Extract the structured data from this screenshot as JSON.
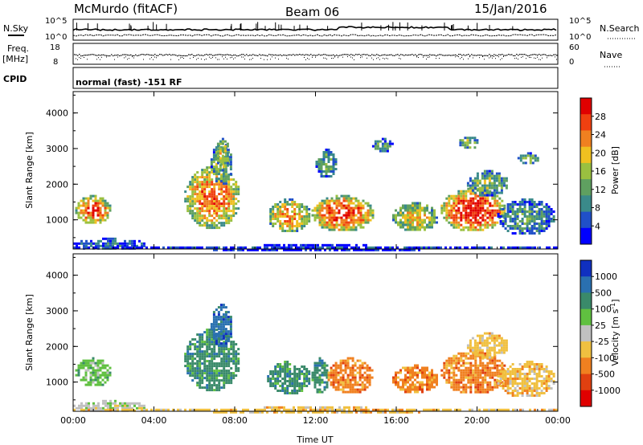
{
  "header": {
    "title_left": "McMurdo (fitACF)",
    "title_center": "Beam 06",
    "title_right": "15/Jan/2016"
  },
  "noise_panel": {
    "left_label": "N.Sky",
    "right_label": "N.Search",
    "left_ticks": [
      "10^5",
      "10^0"
    ],
    "right_ticks": [
      "10^5",
      "10^0"
    ]
  },
  "freq_panel": {
    "left_label_1": "Freq.",
    "left_label_2": "[MHz]",
    "right_label": "Nave",
    "left_ticks": [
      "18",
      "8"
    ],
    "right_ticks": [
      "60",
      "0"
    ]
  },
  "cpid": {
    "label": "CPID",
    "text": "normal (fast) -151 RF"
  },
  "chart_data": [
    {
      "type": "heatmap",
      "title": "",
      "ylabel": "Slant Range [km]",
      "xlabel": "",
      "x_ticks": [
        "00:00",
        "04:00",
        "08:00",
        "12:00",
        "16:00",
        "20:00",
        "00:00"
      ],
      "y_ticks": [
        "1000",
        "2000",
        "3000",
        "4000"
      ],
      "ylim": [
        180,
        4600
      ],
      "xlim_hours": [
        0,
        24
      ],
      "colorbar": {
        "label": "Power [dB]",
        "ticks": [
          "4",
          "8",
          "12",
          "16",
          "20",
          "24",
          "28"
        ],
        "range": [
          0,
          30
        ],
        "colors": [
          "#0000ff",
          "#2050c8",
          "#3a8a8a",
          "#5fa060",
          "#9ac040",
          "#f0c020",
          "#f08020",
          "#f04010",
          "#e00000"
        ]
      },
      "regions": [
        {
          "x": [
            0.1,
            1.8
          ],
          "y": [
            900,
            1700
          ],
          "level": 0.75
        },
        {
          "x": [
            0.0,
            3.5
          ],
          "y": [
            180,
            500
          ],
          "level": 0.2
        },
        {
          "x": [
            5.5,
            8.2
          ],
          "y": [
            800,
            2500
          ],
          "level": 0.7
        },
        {
          "x": [
            6.8,
            7.8
          ],
          "y": [
            2000,
            3200
          ],
          "level": 0.45
        },
        {
          "x": [
            9.6,
            11.7
          ],
          "y": [
            700,
            1600
          ],
          "level": 0.62
        },
        {
          "x": [
            11.8,
            14.8
          ],
          "y": [
            700,
            1700
          ],
          "level": 0.78
        },
        {
          "x": [
            15.8,
            18.0
          ],
          "y": [
            700,
            1500
          ],
          "level": 0.55
        },
        {
          "x": [
            18.2,
            21.4
          ],
          "y": [
            700,
            1900
          ],
          "level": 0.85
        },
        {
          "x": [
            21.0,
            23.8
          ],
          "y": [
            600,
            1600
          ],
          "level": 0.3
        },
        {
          "x": [
            19.5,
            21.5
          ],
          "y": [
            1700,
            2400
          ],
          "level": 0.4
        },
        {
          "x": [
            7.0,
            7.7
          ],
          "y": [
            2400,
            3300
          ],
          "level": 0.5
        },
        {
          "x": [
            12.0,
            13.0
          ],
          "y": [
            2200,
            3000
          ],
          "level": 0.35
        },
        {
          "x": [
            14.8,
            15.8
          ],
          "y": [
            2900,
            3300
          ],
          "level": 0.3
        },
        {
          "x": [
            19.0,
            20.0
          ],
          "y": [
            3000,
            3400
          ],
          "level": 0.4
        },
        {
          "x": [
            22.0,
            23.0
          ],
          "y": [
            2600,
            2900
          ],
          "level": 0.45
        },
        {
          "x": [
            0.0,
            24.0
          ],
          "y": [
            180,
            320
          ],
          "level": 0.1
        }
      ]
    },
    {
      "type": "heatmap",
      "title": "",
      "ylabel": "Slant Range [km]",
      "xlabel": "Time UT",
      "x_ticks": [
        "00:00",
        "04:00",
        "08:00",
        "12:00",
        "16:00",
        "20:00",
        "00:00"
      ],
      "y_ticks": [
        "1000",
        "2000",
        "3000",
        "4000"
      ],
      "ylim": [
        180,
        4600
      ],
      "xlim_hours": [
        0,
        24
      ],
      "colorbar": {
        "label": "Velocity [m s^-1]",
        "ticks": [
          "1000",
          "500",
          "100",
          "25",
          "-25",
          "-100",
          "-500",
          "-1000"
        ],
        "range": [
          -1200,
          1200
        ],
        "colors": [
          "#1030c0",
          "#2a70b0",
          "#3a8a6a",
          "#60c040",
          "#c0c0c0",
          "#f0c040",
          "#f08020",
          "#e04010",
          "#e00000"
        ]
      },
      "regions": [
        {
          "x": [
            0.1,
            1.8
          ],
          "y": [
            900,
            1700
          ],
          "level": 3
        },
        {
          "x": [
            0.0,
            3.5
          ],
          "y": [
            180,
            500
          ],
          "level": 4
        },
        {
          "x": [
            5.5,
            8.2
          ],
          "y": [
            800,
            2500
          ],
          "level": 2
        },
        {
          "x": [
            6.8,
            7.8
          ],
          "y": [
            2000,
            3200
          ],
          "level": 1
        },
        {
          "x": [
            9.6,
            11.7
          ],
          "y": [
            700,
            1600
          ],
          "level": 2
        },
        {
          "x": [
            11.8,
            12.6
          ],
          "y": [
            700,
            1700
          ],
          "level": 2
        },
        {
          "x": [
            12.6,
            14.8
          ],
          "y": [
            700,
            1700
          ],
          "level": 6
        },
        {
          "x": [
            15.8,
            18.0
          ],
          "y": [
            700,
            1500
          ],
          "level": 6
        },
        {
          "x": [
            18.2,
            21.4
          ],
          "y": [
            700,
            1900
          ],
          "level": 6
        },
        {
          "x": [
            21.0,
            23.8
          ],
          "y": [
            600,
            1600
          ],
          "level": 5
        },
        {
          "x": [
            19.5,
            21.5
          ],
          "y": [
            1700,
            2400
          ],
          "level": 5
        },
        {
          "x": [
            0.0,
            24.0
          ],
          "y": [
            180,
            320
          ],
          "level": 5
        }
      ]
    }
  ]
}
